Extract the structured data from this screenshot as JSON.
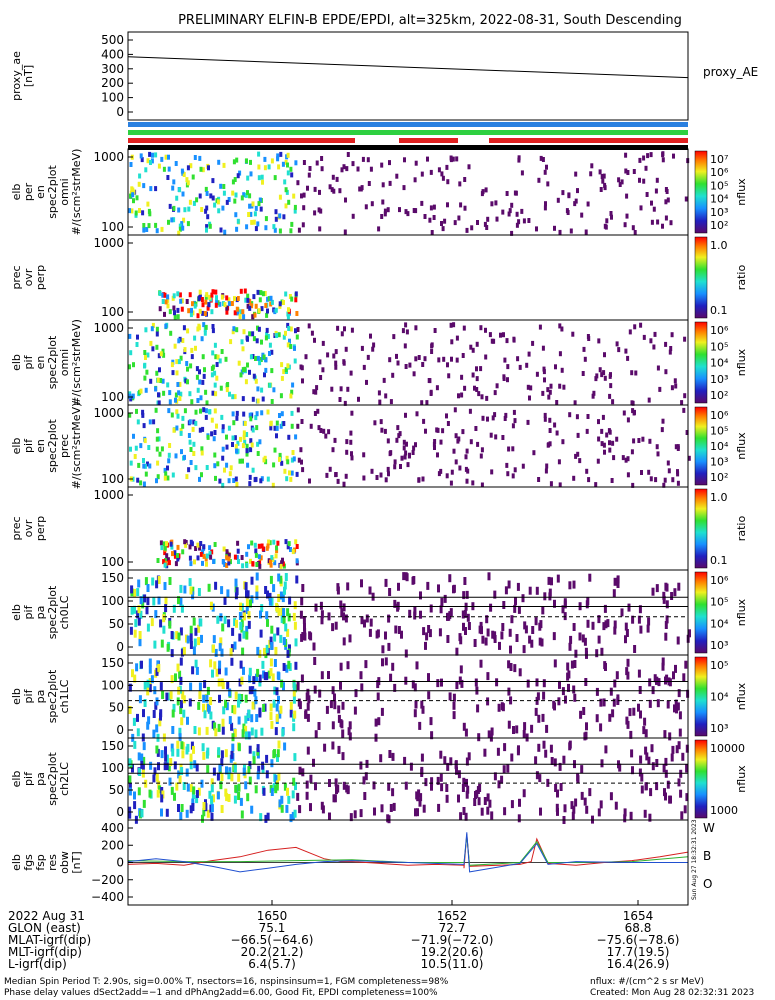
{
  "chart_data": {
    "title": "PRELIMINARY ELFIN-B EPDE/EPDI, alt=325km, 2022-08-31, South Descending",
    "panels": [
      {
        "id": "proxy_ae",
        "type": "line",
        "ylabel": [
          "proxy_ae",
          "[nT]"
        ],
        "yticks": [
          "500",
          "400",
          "300",
          "200",
          "100",
          "0"
        ],
        "ylim": [
          0,
          550
        ],
        "series": [
          {
            "name": "proxy_AE",
            "x": [
              0,
              1
            ],
            "values": [
              395,
              265
            ]
          }
        ],
        "legend": "proxy_AE"
      },
      {
        "id": "elb_per_en",
        "type": "heatmap",
        "ylabel": [
          "elb",
          "per",
          "en",
          "spec2plot",
          "omni",
          "#/(scm²strMeV)"
        ],
        "yticks": [
          "1000",
          "100"
        ],
        "cbar_label": "nflux",
        "cbar_ticks": [
          "10⁷",
          "10⁶",
          "10⁵",
          "10⁴",
          "10³",
          "10²"
        ]
      },
      {
        "id": "elb_per_prec",
        "type": "heatmap",
        "ylabel": [
          "prec",
          "ovr",
          "perp"
        ],
        "yticks": [
          "1000",
          "100"
        ],
        "cbar_label": "ratio",
        "cbar_ticks": [
          "1.0",
          "0.1"
        ]
      },
      {
        "id": "elb_pif_en_omni",
        "type": "heatmap",
        "ylabel": [
          "elb",
          "pif",
          "en",
          "spec2plot",
          "omni",
          "#/(scm²strMeV)"
        ],
        "yticks": [
          "1000",
          "100"
        ],
        "cbar_label": "nflux",
        "cbar_ticks": [
          "10⁶",
          "10⁵",
          "10⁴",
          "10³",
          "10²"
        ]
      },
      {
        "id": "elb_pif_en_prec",
        "type": "heatmap",
        "ylabel": [
          "elb",
          "pif",
          "en",
          "spec2plot",
          "prec",
          "#/(scm²strMeV)"
        ],
        "yticks": [
          "1000",
          "100"
        ],
        "cbar_label": "nflux",
        "cbar_ticks": [
          "10⁶",
          "10⁵",
          "10⁴",
          "10³",
          "10²"
        ]
      },
      {
        "id": "elb_pif_ratio",
        "type": "heatmap",
        "ylabel": [
          "prec",
          "ovr",
          "perp"
        ],
        "yticks": [
          "1000",
          "100"
        ],
        "cbar_label": "ratio",
        "cbar_ticks": [
          "1.0",
          "0.1"
        ]
      },
      {
        "id": "elb_pif_pa_ch0",
        "type": "heatmap",
        "ylabel": [
          "elb",
          "pif",
          "pa",
          "spec2plot",
          "ch0LC"
        ],
        "yticks": [
          "150",
          "100",
          "50",
          "0"
        ],
        "cbar_label": "nflux",
        "cbar_ticks": [
          "10⁶",
          "10⁵",
          "10⁴",
          "10³"
        ]
      },
      {
        "id": "elb_pif_pa_ch1",
        "type": "heatmap",
        "ylabel": [
          "elb",
          "pif",
          "pa",
          "spec2plot",
          "ch1LC"
        ],
        "yticks": [
          "150",
          "100",
          "50",
          "0"
        ],
        "cbar_label": "nflux",
        "cbar_ticks": [
          "10⁵",
          "10⁴",
          "10³"
        ]
      },
      {
        "id": "elb_pif_pa_ch2",
        "type": "heatmap",
        "ylabel": [
          "elb",
          "pif",
          "pa",
          "spec2plot",
          "ch2LC"
        ],
        "yticks": [
          "150",
          "100",
          "50",
          "0"
        ],
        "cbar_label": "nflux",
        "cbar_ticks": [
          "10000",
          "1000"
        ]
      },
      {
        "id": "elb_fgs",
        "type": "line",
        "ylabel": [
          "elb",
          "fgs",
          "fsp",
          "res",
          "obw",
          "[nT]"
        ],
        "yticks": [
          "400",
          "200",
          "0",
          "−200",
          "−400"
        ],
        "ylim": [
          -450,
          450
        ],
        "series": [
          {
            "name": "W",
            "color": "#d62020",
            "x": [
              0,
              0.05,
              0.1,
              0.15,
              0.2,
              0.25,
              0.3,
              0.35,
              0.38,
              0.4,
              0.45,
              0.5,
              0.55,
              0.6,
              0.6,
              0.605,
              0.61,
              0.7,
              0.72,
              0.73,
              0.75,
              0.8,
              0.85,
              0.9,
              0.95,
              1
            ],
            "values": [
              -20,
              -10,
              -30,
              20,
              60,
              130,
              160,
              40,
              10,
              10,
              -10,
              -30,
              -20,
              -30,
              -60,
              300,
              -40,
              -20,
              10,
              250,
              -10,
              -30,
              0,
              20,
              60,
              110
            ]
          },
          {
            "name": "B",
            "color": "#30b030",
            "x": [
              0,
              0.1,
              0.2,
              0.3,
              0.4,
              0.5,
              0.6,
              0.605,
              0.61,
              0.7,
              0.73,
              0.75,
              0.8,
              0.9,
              1
            ],
            "values": [
              20,
              10,
              10,
              20,
              30,
              0,
              0,
              280,
              -30,
              0,
              220,
              0,
              0,
              10,
              60
            ]
          },
          {
            "name": "O",
            "color": "#2050d0",
            "x": [
              0,
              0.05,
              0.1,
              0.15,
              0.2,
              0.25,
              0.3,
              0.35,
              0.4,
              0.5,
              0.6,
              0.605,
              0.61,
              0.7,
              0.73,
              0.75,
              0.8,
              0.9,
              1
            ],
            "values": [
              10,
              40,
              10,
              -40,
              -100,
              -60,
              -20,
              10,
              20,
              0,
              -20,
              320,
              -100,
              -10,
              200,
              -20,
              10,
              0,
              0
            ]
          }
        ],
        "legend": [
          "W",
          "B",
          "O"
        ]
      }
    ],
    "xticks": {
      "labels": [
        "1650",
        "1652",
        "1654"
      ],
      "row_labels": [
        "2022 Aug 31",
        "GLON (east)",
        "MLAT-igrf(dip)",
        "MLT-igrf(dip)",
        "L-igrf(dip)"
      ],
      "rows": [
        [
          "1650",
          "1652",
          "1654"
        ],
        [
          "75.1",
          "72.7",
          "68.8"
        ],
        [
          "−66.5(−64.6)",
          "−71.9(−72.0)",
          "−75.6(−78.6)"
        ],
        [
          "20.2(21.2)",
          "19.2(20.6)",
          "17.7(19.5)"
        ],
        [
          "6.4(5.7)",
          "10.5(11.0)",
          "16.4(26.9)"
        ]
      ]
    },
    "side_stamp": "Sun Aug 27 18:32:31 2023"
  },
  "footer": {
    "line1": "Median Spin Period T: 2.90s, sig=0.00% T, nsectors=16, nspinsinsum=1, FGM completeness=98%",
    "line2": "Phase delay values dSect2add=−1 and dPhAng2add=6.00, Good Fit, EPDI completeness=100%",
    "right1": "nflux: #/(cm^2 s sr MeV)",
    "right2": "Created: Mon Aug 28 02:32:31 2023"
  },
  "colors": {
    "bar_blue": "#2a80e0",
    "bar_green": "#2ed040",
    "bar_red": "#e02020"
  }
}
